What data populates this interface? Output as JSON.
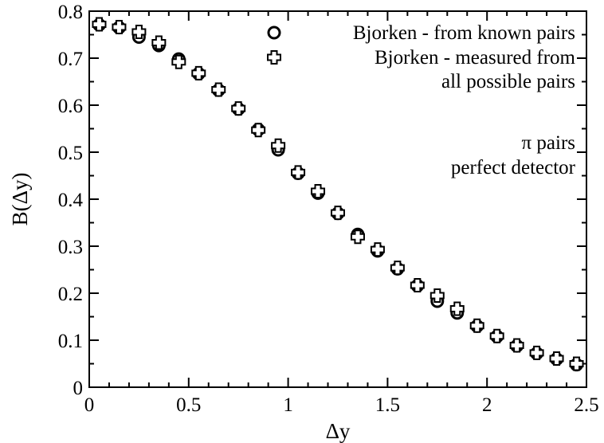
{
  "chart_data": {
    "type": "scatter",
    "xlabel": "Δy",
    "ylabel": "B(Δy)",
    "xlim": [
      0,
      2.5
    ],
    "ylim": [
      0,
      0.8
    ],
    "x_ticks": [
      "0",
      "0.5",
      "1",
      "1.5",
      "2",
      "2.5"
    ],
    "y_ticks": [
      "0",
      "0.1",
      "0.2",
      "0.3",
      "0.4",
      "0.5",
      "0.6",
      "0.7",
      "0.8"
    ],
    "grid": false,
    "legend_position": "top-right",
    "x": [
      0.05,
      0.15,
      0.25,
      0.35,
      0.45,
      0.55,
      0.65,
      0.75,
      0.85,
      0.95,
      1.05,
      1.15,
      1.25,
      1.35,
      1.45,
      1.55,
      1.65,
      1.75,
      1.85,
      1.95,
      2.05,
      2.15,
      2.25,
      2.35,
      2.45
    ],
    "series": [
      {
        "name": "Bjorken - from known pairs",
        "marker": "circle",
        "values": [
          0.771,
          0.765,
          0.745,
          0.727,
          0.698,
          0.667,
          0.632,
          0.592,
          0.548,
          0.505,
          0.455,
          0.413,
          0.37,
          0.325,
          0.29,
          0.252,
          0.216,
          0.183,
          0.158,
          0.13,
          0.108,
          0.088,
          0.072,
          0.06,
          0.048
        ]
      },
      {
        "name": "Bjorken - measured from all possible pairs",
        "marker": "cross",
        "values": [
          0.772,
          0.766,
          0.756,
          0.733,
          0.692,
          0.668,
          0.633,
          0.593,
          0.547,
          0.514,
          0.457,
          0.417,
          0.371,
          0.32,
          0.293,
          0.254,
          0.217,
          0.195,
          0.167,
          0.131,
          0.109,
          0.089,
          0.073,
          0.061,
          0.05
        ]
      }
    ],
    "legend": {
      "entry1": "Bjorken - from known pairs",
      "entry2_line1": "Bjorken - measured from",
      "entry2_line2": "all possible pairs"
    },
    "annotations": {
      "line1": "π pairs",
      "line2": "perfect detector"
    }
  }
}
